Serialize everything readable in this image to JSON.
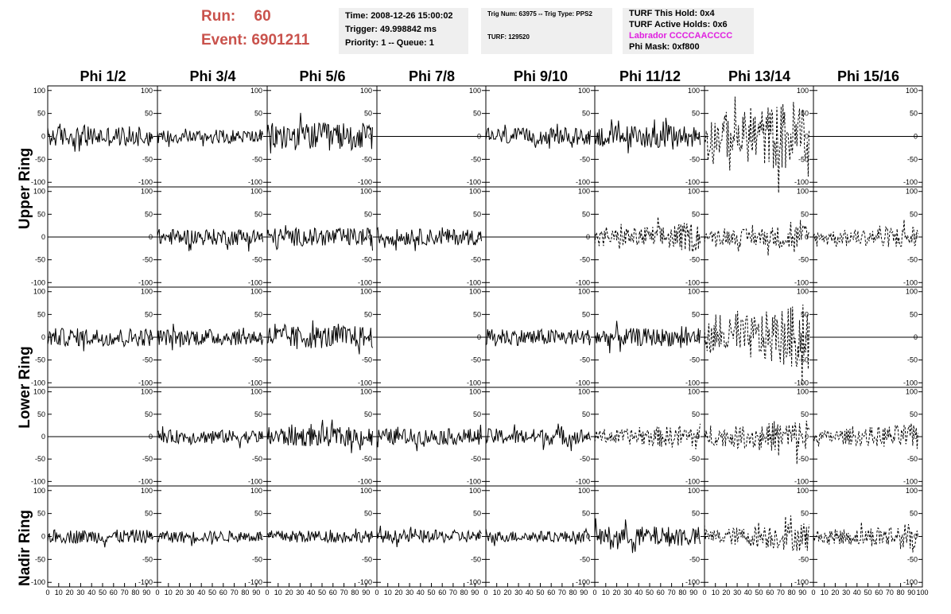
{
  "header": {
    "run_label": "Run:",
    "run_value": "60",
    "event_label": "Event:",
    "event_value": "6901211",
    "time_line": "Time: 2008-12-26 15:00:02",
    "trigger_line": "Trigger: 49.998842 ms",
    "priority_line": "Priority: 1 -- Queue: 1",
    "trig_line": "Trig Num: 63975 -- Trig Type: PPS2",
    "turf_line": "TURF: 129520",
    "hold_line": "TURF This Hold: 0x4",
    "active_holds_line": "TURF Active Holds: 0x6",
    "labrador_line": "Labrador CCCCAACCCC",
    "phi_mask_line": "Phi Mask: 0xf800",
    "labrador_color": "#e020e0",
    "run_color": "#c9524c"
  },
  "columns": [
    "Phi 1/2",
    "Phi 3/4",
    "Phi 5/6",
    "Phi 7/8",
    "Phi 9/10",
    "Phi 11/12",
    "Phi 13/14",
    "Phi 15/16"
  ],
  "rings": [
    "Upper Ring",
    "Lower Ring",
    "Nadir Ring"
  ],
  "chart_data": {
    "type": "line",
    "description_rows": 5,
    "xlim": [
      0,
      100
    ],
    "ylim": [
      -110,
      110
    ],
    "yticks": [
      -100,
      -50,
      0,
      50,
      100
    ],
    "xticks": [
      0,
      10,
      20,
      30,
      40,
      50,
      60,
      70,
      80,
      90,
      100
    ],
    "panels": [
      [
        {
          "style": "solid",
          "amp": 22
        },
        {
          "style": "solid",
          "amp": 15
        },
        {
          "style": "solid",
          "amp": 30
        },
        {
          "style": "flat",
          "amp": 0
        },
        {
          "style": "solid",
          "amp": 18
        },
        {
          "style": "solid",
          "amp": 25
        },
        {
          "style": "dashed",
          "amp": 65
        },
        {
          "style": "flat",
          "amp": 0
        }
      ],
      [
        {
          "style": "flat",
          "amp": 0
        },
        {
          "style": "solid",
          "amp": 18
        },
        {
          "style": "solid",
          "amp": 20
        },
        {
          "style": "solid",
          "amp": 18
        },
        {
          "style": "flat",
          "amp": 0
        },
        {
          "style": "dashed",
          "amp": 25
        },
        {
          "style": "dashed",
          "amp": 22
        },
        {
          "style": "dashed",
          "amp": 20
        }
      ],
      [
        {
          "style": "solid",
          "amp": 20
        },
        {
          "style": "solid",
          "amp": 18
        },
        {
          "style": "solid",
          "amp": 25
        },
        {
          "style": "flat",
          "amp": 0
        },
        {
          "style": "solid",
          "amp": 18
        },
        {
          "style": "solid",
          "amp": 20
        },
        {
          "style": "dashed",
          "amp": 55
        },
        {
          "style": "flat",
          "amp": 0
        }
      ],
      [
        {
          "style": "flat",
          "amp": 0
        },
        {
          "style": "solid",
          "amp": 15
        },
        {
          "style": "solid",
          "amp": 22
        },
        {
          "style": "solid",
          "amp": 18
        },
        {
          "style": "solid",
          "amp": 18
        },
        {
          "style": "dashed",
          "amp": 22
        },
        {
          "style": "dashed",
          "amp": 30
        },
        {
          "style": "dashed",
          "amp": 22
        }
      ],
      [
        {
          "style": "solid",
          "amp": 15
        },
        {
          "style": "solid",
          "amp": 12
        },
        {
          "style": "solid",
          "amp": 13
        },
        {
          "style": "solid",
          "amp": 14
        },
        {
          "style": "solid",
          "amp": 12
        },
        {
          "style": "solid",
          "amp": 22
        },
        {
          "style": "dashed",
          "amp": 25
        },
        {
          "style": "dashed",
          "amp": 22
        }
      ]
    ]
  }
}
